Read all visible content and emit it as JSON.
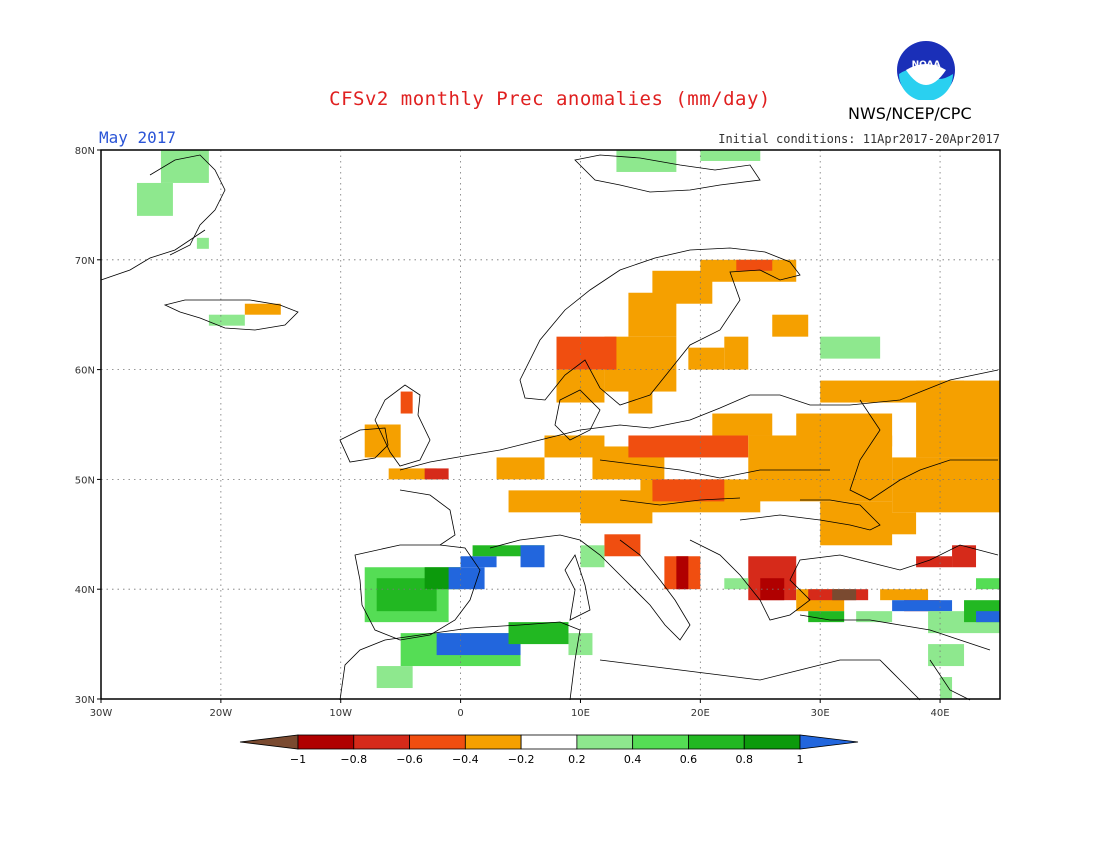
{
  "title": "CFSv2 monthly Prec anomalies (mm/day)",
  "month": "May 2017",
  "initial_conditions": "Initial conditions: 11Apr2017-20Apr2017",
  "agency": "NWS/NCEP/CPC",
  "logo_text": "NOAA",
  "axes": {
    "lon_labels": [
      "30W",
      "20W",
      "10W",
      "0",
      "10E",
      "20E",
      "30E",
      "40E"
    ],
    "lat_labels": [
      "30N",
      "40N",
      "50N",
      "60N",
      "70N",
      "80N"
    ],
    "lon_range": [
      -30,
      45
    ],
    "lat_range": [
      30,
      80
    ],
    "grid": "dotted"
  },
  "colorbar": {
    "ticks": [
      "-1",
      "-0.8",
      "-0.6",
      "-0.4",
      "-0.2",
      "0.2",
      "0.4",
      "0.6",
      "0.8",
      "1"
    ],
    "colors": [
      "#7a4a30",
      "#b00000",
      "#d62a1a",
      "#f04e10",
      "#f5a000",
      "#ffffff",
      "#8ee88e",
      "#55dd55",
      "#22b822",
      "#0c9a0c",
      "#2266dd"
    ]
  },
  "anomaly_cells": [
    {
      "lon": -25,
      "lat": 77,
      "w": 4,
      "h": 3,
      "c": "#8ee88e"
    },
    {
      "lon": -27,
      "lat": 74,
      "w": 3,
      "h": 3,
      "c": "#8ee88e"
    },
    {
      "lon": -22,
      "lat": 71,
      "w": 1,
      "h": 1,
      "c": "#8ee88e"
    },
    {
      "lon": -21,
      "lat": 64,
      "w": 3,
      "h": 1,
      "c": "#8ee88e"
    },
    {
      "lon": -18,
      "lat": 65,
      "w": 3,
      "h": 1,
      "c": "#f5a000"
    },
    {
      "lon": 13,
      "lat": 78,
      "w": 5,
      "h": 2,
      "c": "#8ee88e"
    },
    {
      "lon": 20,
      "lat": 79,
      "w": 5,
      "h": 1,
      "c": "#8ee88e"
    },
    {
      "lon": 12,
      "lat": 58,
      "w": 6,
      "h": 5,
      "c": "#f5a000"
    },
    {
      "lon": 14,
      "lat": 63,
      "w": 4,
      "h": 4,
      "c": "#f5a000"
    },
    {
      "lon": 16,
      "lat": 66,
      "w": 5,
      "h": 3,
      "c": "#f5a000"
    },
    {
      "lon": 20,
      "lat": 68,
      "w": 8,
      "h": 2,
      "c": "#f5a000"
    },
    {
      "lon": 23,
      "lat": 69,
      "w": 3,
      "h": 1,
      "c": "#f04e10"
    },
    {
      "lon": 8,
      "lat": 60,
      "w": 5,
      "h": 3,
      "c": "#f04e10"
    },
    {
      "lon": 8,
      "lat": 57,
      "w": 4,
      "h": 3,
      "c": "#f5a000"
    },
    {
      "lon": 14,
      "lat": 56,
      "w": 2,
      "h": 3,
      "c": "#f5a000"
    },
    {
      "lon": 19,
      "lat": 60,
      "w": 3,
      "h": 2,
      "c": "#f5a000"
    },
    {
      "lon": 26,
      "lat": 63,
      "w": 3,
      "h": 2,
      "c": "#f5a000"
    },
    {
      "lon": 22,
      "lat": 60,
      "w": 2,
      "h": 3,
      "c": "#f5a000"
    },
    {
      "lon": 7,
      "lat": 52,
      "w": 5,
      "h": 2,
      "c": "#f5a000"
    },
    {
      "lon": 3,
      "lat": 50,
      "w": 4,
      "h": 2,
      "c": "#f5a000"
    },
    {
      "lon": 11,
      "lat": 50,
      "w": 6,
      "h": 3,
      "c": "#f5a000"
    },
    {
      "lon": 14,
      "lat": 52,
      "w": 10,
      "h": 2,
      "c": "#f04e10"
    },
    {
      "lon": 15,
      "lat": 47,
      "w": 10,
      "h": 3,
      "c": "#f5a000"
    },
    {
      "lon": 16,
      "lat": 48,
      "w": 6,
      "h": 2,
      "c": "#f04e10"
    },
    {
      "lon": 10,
      "lat": 46,
      "w": 6,
      "h": 3,
      "c": "#f5a000"
    },
    {
      "lon": 4,
      "lat": 47,
      "w": 6,
      "h": 2,
      "c": "#f5a000"
    },
    {
      "lon": 21,
      "lat": 54,
      "w": 5,
      "h": 2,
      "c": "#f5a000"
    },
    {
      "lon": 24,
      "lat": 48,
      "w": 12,
      "h": 6,
      "c": "#f5a000"
    },
    {
      "lon": 36,
      "lat": 47,
      "w": 9,
      "h": 5,
      "c": "#f5a000"
    },
    {
      "lon": 38,
      "lat": 52,
      "w": 7,
      "h": 7,
      "c": "#f5a000"
    },
    {
      "lon": 28,
      "lat": 53,
      "w": 8,
      "h": 3,
      "c": "#f5a000"
    },
    {
      "lon": 30,
      "lat": 57,
      "w": 12,
      "h": 2,
      "c": "#f5a000"
    },
    {
      "lon": 30,
      "lat": 44,
      "w": 6,
      "h": 4,
      "c": "#f5a000"
    },
    {
      "lon": 35,
      "lat": 45,
      "w": 3,
      "h": 2,
      "c": "#f5a000"
    },
    {
      "lon": -8,
      "lat": 52,
      "w": 3,
      "h": 3,
      "c": "#f5a000"
    },
    {
      "lon": -5,
      "lat": 56,
      "w": 1,
      "h": 2,
      "c": "#f04e10"
    },
    {
      "lon": -6,
      "lat": 50,
      "w": 4,
      "h": 1,
      "c": "#f5a000"
    },
    {
      "lon": -3,
      "lat": 50,
      "w": 2,
      "h": 1,
      "c": "#d62a1a"
    },
    {
      "lon": 12,
      "lat": 43,
      "w": 3,
      "h": 2,
      "c": "#f04e10"
    },
    {
      "lon": 17,
      "lat": 40,
      "w": 3,
      "h": 3,
      "c": "#f04e10"
    },
    {
      "lon": 18,
      "lat": 40,
      "w": 1,
      "h": 3,
      "c": "#b00000"
    },
    {
      "lon": 24,
      "lat": 39,
      "w": 4,
      "h": 4,
      "c": "#d62a1a"
    },
    {
      "lon": 25,
      "lat": 39,
      "w": 2,
      "h": 2,
      "c": "#b00000"
    },
    {
      "lon": 28,
      "lat": 38,
      "w": 4,
      "h": 2,
      "c": "#f5a000"
    },
    {
      "lon": 29,
      "lat": 39,
      "w": 5,
      "h": 1,
      "c": "#d62a1a"
    },
    {
      "lon": 31,
      "lat": 39,
      "w": 2,
      "h": 1,
      "c": "#7a4a30"
    },
    {
      "lon": 35,
      "lat": 39,
      "w": 4,
      "h": 1,
      "c": "#f5a000"
    },
    {
      "lon": 37,
      "lat": 38,
      "w": 3,
      "h": 1,
      "c": "#b00000"
    },
    {
      "lon": 38,
      "lat": 42,
      "w": 3,
      "h": 1,
      "c": "#d62a1a"
    },
    {
      "lon": 41,
      "lat": 42,
      "w": 2,
      "h": 2,
      "c": "#d62a1a"
    },
    {
      "lon": -8,
      "lat": 37,
      "w": 7,
      "h": 5,
      "c": "#55dd55"
    },
    {
      "lon": -7,
      "lat": 38,
      "w": 5,
      "h": 3,
      "c": "#22b822"
    },
    {
      "lon": -3,
      "lat": 40,
      "w": 3,
      "h": 2,
      "c": "#0c9a0c"
    },
    {
      "lon": -1,
      "lat": 40,
      "w": 3,
      "h": 2,
      "c": "#2266dd"
    },
    {
      "lon": 0,
      "lat": 42,
      "w": 3,
      "h": 1,
      "c": "#2266dd"
    },
    {
      "lon": 1,
      "lat": 43,
      "w": 6,
      "h": 1,
      "c": "#22b822"
    },
    {
      "lon": 5,
      "lat": 42,
      "w": 2,
      "h": 2,
      "c": "#2266dd"
    },
    {
      "lon": 10,
      "lat": 42,
      "w": 2,
      "h": 2,
      "c": "#8ee88e"
    },
    {
      "lon": 22,
      "lat": 40,
      "w": 2,
      "h": 1,
      "c": "#8ee88e"
    },
    {
      "lon": 29,
      "lat": 37,
      "w": 3,
      "h": 1,
      "c": "#22b822"
    },
    {
      "lon": 33,
      "lat": 37,
      "w": 3,
      "h": 1,
      "c": "#8ee88e"
    },
    {
      "lon": 36,
      "lat": 38,
      "w": 5,
      "h": 1,
      "c": "#2266dd"
    },
    {
      "lon": 39,
      "lat": 36,
      "w": 6,
      "h": 2,
      "c": "#8ee88e"
    },
    {
      "lon": 42,
      "lat": 37,
      "w": 3,
      "h": 2,
      "c": "#22b822"
    },
    {
      "lon": 43,
      "lat": 37,
      "w": 2,
      "h": 1,
      "c": "#2266dd"
    },
    {
      "lon": 43,
      "lat": 40,
      "w": 2,
      "h": 1,
      "c": "#55dd55"
    },
    {
      "lon": 39,
      "lat": 33,
      "w": 3,
      "h": 2,
      "c": "#8ee88e"
    },
    {
      "lon": 40,
      "lat": 30,
      "w": 1,
      "h": 2,
      "c": "#8ee88e"
    },
    {
      "lon": 30,
      "lat": 61,
      "w": 5,
      "h": 2,
      "c": "#8ee88e"
    },
    {
      "lon": -5,
      "lat": 33,
      "w": 10,
      "h": 3,
      "c": "#55dd55"
    },
    {
      "lon": -2,
      "lat": 34,
      "w": 7,
      "h": 2,
      "c": "#2266dd"
    },
    {
      "lon": 4,
      "lat": 35,
      "w": 5,
      "h": 2,
      "c": "#22b822"
    },
    {
      "lon": -7,
      "lat": 31,
      "w": 3,
      "h": 2,
      "c": "#8ee88e"
    },
    {
      "lon": 9,
      "lat": 34,
      "w": 2,
      "h": 2,
      "c": "#8ee88e"
    }
  ]
}
